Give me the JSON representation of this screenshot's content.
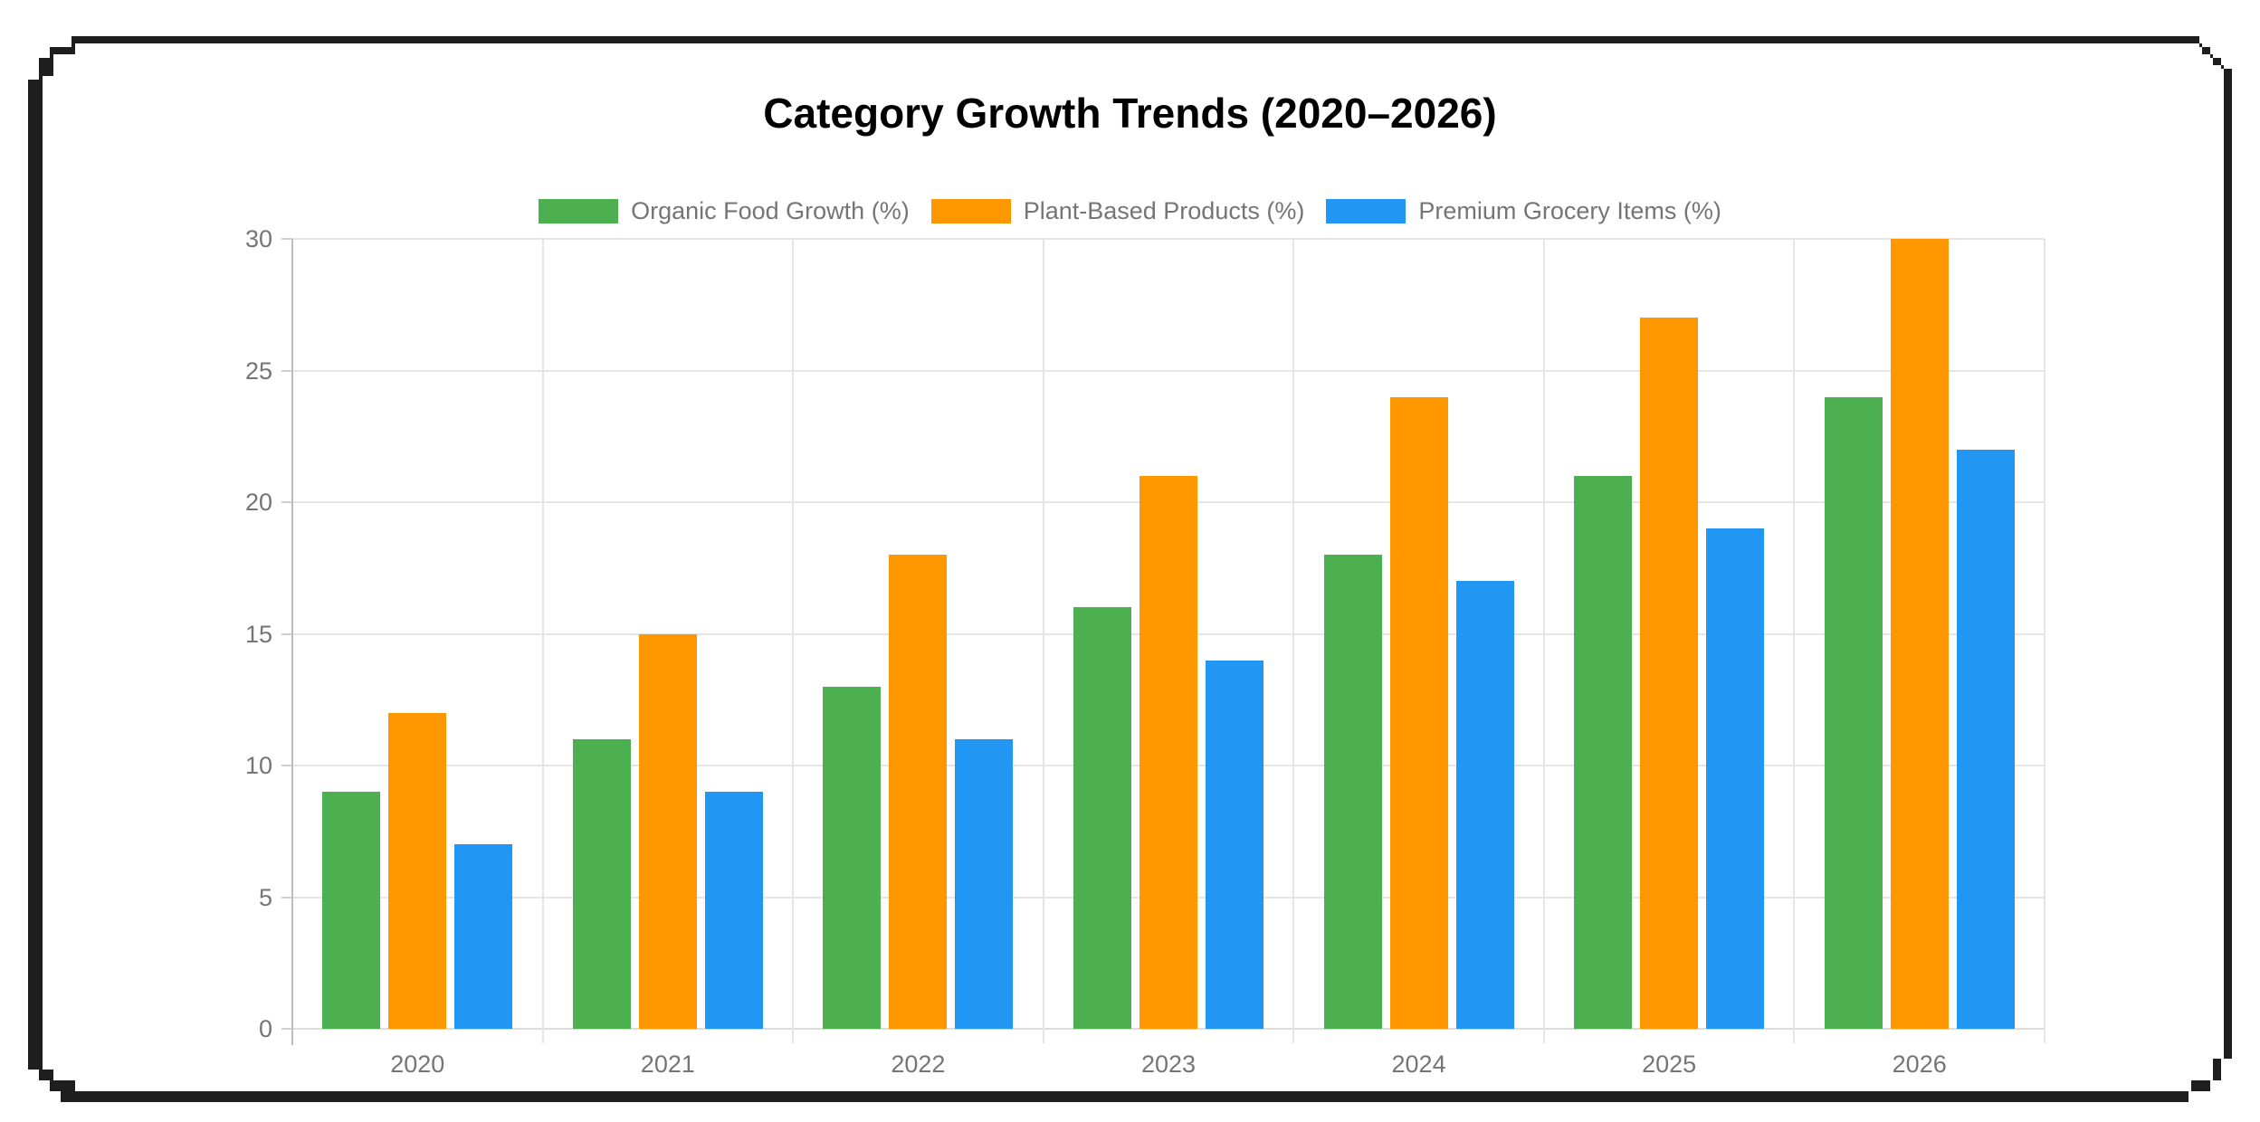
{
  "frame": {
    "color": "#1e1e1e"
  },
  "chart_data": {
    "type": "bar",
    "title": "Category Growth Trends (2020–2026)",
    "categories": [
      "2020",
      "2021",
      "2022",
      "2023",
      "2024",
      "2025",
      "2026"
    ],
    "series": [
      {
        "name": "Organic Food Growth (%)",
        "color": "#4caf50",
        "values": [
          9,
          11,
          13,
          16,
          18,
          21,
          24
        ]
      },
      {
        "name": "Plant-Based Products (%)",
        "color": "#ff9800",
        "values": [
          12,
          15,
          18,
          21,
          24,
          27,
          30
        ]
      },
      {
        "name": "Premium Grocery Items (%)",
        "color": "#2196f3",
        "values": [
          7,
          9,
          11,
          14,
          17,
          19,
          22
        ]
      }
    ],
    "xlabel": "",
    "ylabel": "",
    "ylim": [
      0,
      30
    ],
    "yticks": [
      0,
      5,
      10,
      15,
      20,
      25,
      30
    ],
    "grid": true,
    "legend_position": "top",
    "axis_label_color": "#757575",
    "gridline_color": "#e5e5e5",
    "axis_line_color": "#bdbdbd"
  }
}
